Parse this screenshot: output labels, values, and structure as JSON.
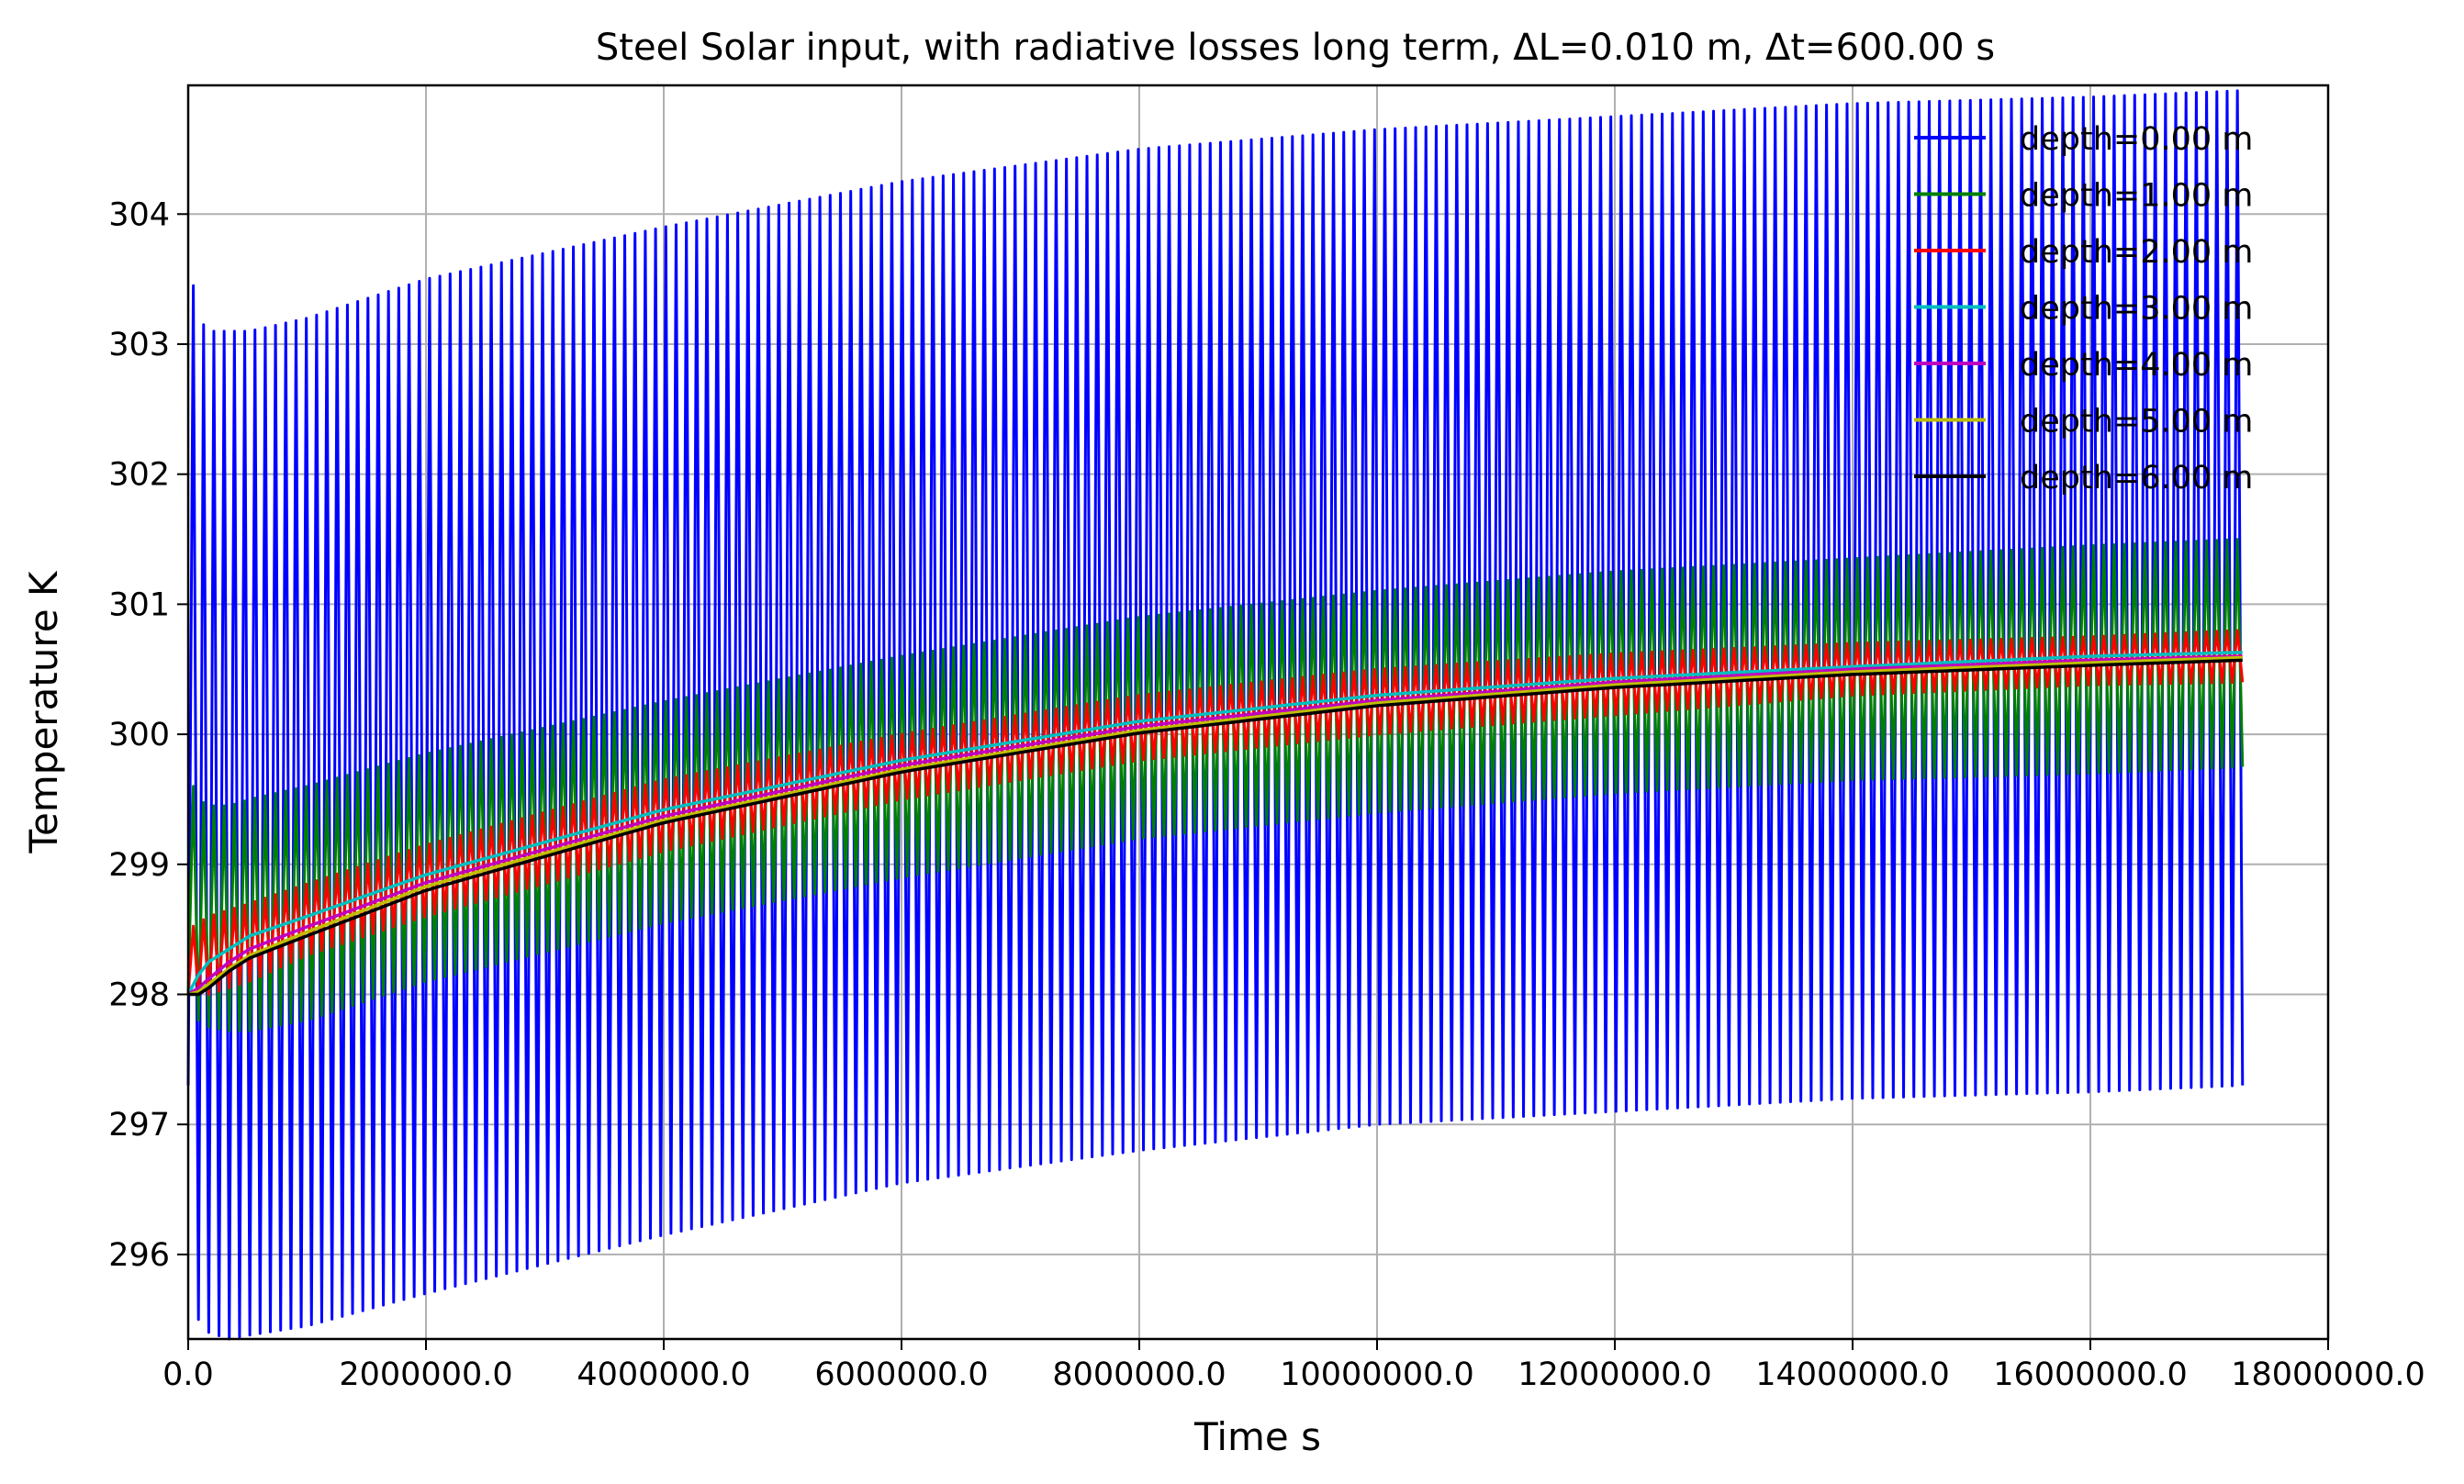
{
  "chart_data": {
    "type": "line",
    "title": "Steel Solar input, with radiative losses long term,  ΔL=0.010 m, Δt=600.00 s",
    "xlabel": "Time s",
    "ylabel": "Temperature K",
    "xlim": [
      0,
      18000000
    ],
    "ylim": [
      295.35,
      304.99
    ],
    "x_ticks": [
      0,
      2000000,
      4000000,
      6000000,
      8000000,
      10000000,
      12000000,
      14000000,
      16000000,
      18000000
    ],
    "x_tick_labels": [
      "0.0",
      "2000000.0",
      "4000000.0",
      "6000000.0",
      "8000000.0",
      "10000000.0",
      "12000000.0",
      "14000000.0",
      "16000000.0",
      "18000000.0"
    ],
    "y_ticks": [
      296,
      297,
      298,
      299,
      300,
      301,
      302,
      303,
      304
    ],
    "y_tick_labels": [
      "296",
      "297",
      "298",
      "299",
      "300",
      "301",
      "302",
      "303",
      "304"
    ],
    "grid": true,
    "legend_position": "top-right",
    "x_end": 17280000,
    "period_s": 86400,
    "series": [
      {
        "name": "depth=0.00 m",
        "color": "#0000ff",
        "envelope": {
          "x": [
            0,
            86400,
            172800,
            345600,
            518400,
            1000000,
            2000000,
            4000000,
            6000000,
            8000000,
            10000000,
            12000000,
            14000000,
            16000000,
            17280000
          ],
          "max": [
            303.7,
            303.2,
            303.1,
            303.1,
            303.1,
            303.2,
            303.5,
            303.9,
            304.25,
            304.5,
            304.65,
            304.75,
            304.85,
            304.9,
            304.95
          ],
          "min": [
            297.3,
            295.5,
            295.4,
            295.35,
            295.38,
            295.45,
            295.7,
            296.15,
            296.55,
            296.8,
            297.0,
            297.1,
            297.2,
            297.25,
            297.3
          ]
        }
      },
      {
        "name": "depth=1.00 m",
        "color": "#008000",
        "envelope": {
          "x": [
            0,
            86400,
            172800,
            345600,
            518400,
            1000000,
            2000000,
            4000000,
            6000000,
            8000000,
            10000000,
            12000000,
            14000000,
            16000000,
            17280000
          ],
          "max": [
            299.7,
            299.5,
            299.45,
            299.45,
            299.5,
            299.6,
            299.85,
            300.25,
            300.6,
            300.9,
            301.1,
            301.25,
            301.35,
            301.45,
            301.5
          ],
          "min": [
            298.0,
            297.8,
            297.75,
            297.72,
            297.72,
            297.8,
            298.1,
            298.55,
            298.9,
            299.2,
            299.4,
            299.55,
            299.65,
            299.7,
            299.75
          ]
        }
      },
      {
        "name": "depth=2.00 m",
        "color": "#ff0000",
        "envelope": {
          "x": [
            0,
            86400,
            172800,
            345600,
            518400,
            1000000,
            2000000,
            4000000,
            6000000,
            8000000,
            10000000,
            12000000,
            14000000,
            16000000,
            17280000
          ],
          "max": [
            298.5,
            298.55,
            298.6,
            298.65,
            298.7,
            298.85,
            299.15,
            299.65,
            300.0,
            300.3,
            300.5,
            300.62,
            300.7,
            300.75,
            300.8
          ],
          "min": [
            298.0,
            298.0,
            298.0,
            298.05,
            298.1,
            298.3,
            298.6,
            299.1,
            299.5,
            299.8,
            300.0,
            300.15,
            300.3,
            300.38,
            300.4
          ]
        }
      },
      {
        "name": "depth=3.00 m",
        "color": "#00bfbf",
        "curve": {
          "x": [
            0,
            86400,
            172800,
            345600,
            518400,
            1000000,
            2000000,
            4000000,
            6000000,
            8000000,
            10000000,
            12000000,
            14000000,
            16000000,
            17280000
          ],
          "y": [
            298.0,
            298.15,
            298.25,
            298.35,
            298.45,
            298.6,
            298.92,
            299.42,
            299.8,
            300.1,
            300.3,
            300.43,
            300.52,
            300.6,
            300.63
          ]
        }
      },
      {
        "name": "depth=4.00 m",
        "color": "#bf00bf",
        "curve": {
          "x": [
            0,
            86400,
            172800,
            345600,
            518400,
            1000000,
            2000000,
            4000000,
            6000000,
            8000000,
            10000000,
            12000000,
            14000000,
            16000000,
            17280000
          ],
          "y": [
            298.0,
            298.05,
            298.12,
            298.25,
            298.35,
            298.52,
            298.86,
            299.37,
            299.76,
            300.06,
            300.26,
            300.4,
            300.5,
            300.57,
            300.6
          ]
        }
      },
      {
        "name": "depth=5.00 m",
        "color": "#bfbf00",
        "curve": {
          "x": [
            0,
            86400,
            172800,
            345600,
            518400,
            1000000,
            2000000,
            4000000,
            6000000,
            8000000,
            10000000,
            12000000,
            14000000,
            16000000,
            17280000
          ],
          "y": [
            298.0,
            298.02,
            298.08,
            298.2,
            298.3,
            298.48,
            298.83,
            299.34,
            299.73,
            300.03,
            300.24,
            300.38,
            300.48,
            300.55,
            300.59
          ]
        }
      },
      {
        "name": "depth=6.00 m",
        "color": "#000000",
        "curve": {
          "x": [
            0,
            86400,
            172800,
            345600,
            518400,
            1000000,
            2000000,
            4000000,
            6000000,
            8000000,
            10000000,
            12000000,
            14000000,
            16000000,
            17280000
          ],
          "y": [
            298.0,
            298.0,
            298.05,
            298.18,
            298.28,
            298.45,
            298.8,
            299.32,
            299.71,
            300.01,
            300.22,
            300.36,
            300.46,
            300.53,
            300.57
          ]
        }
      }
    ]
  }
}
